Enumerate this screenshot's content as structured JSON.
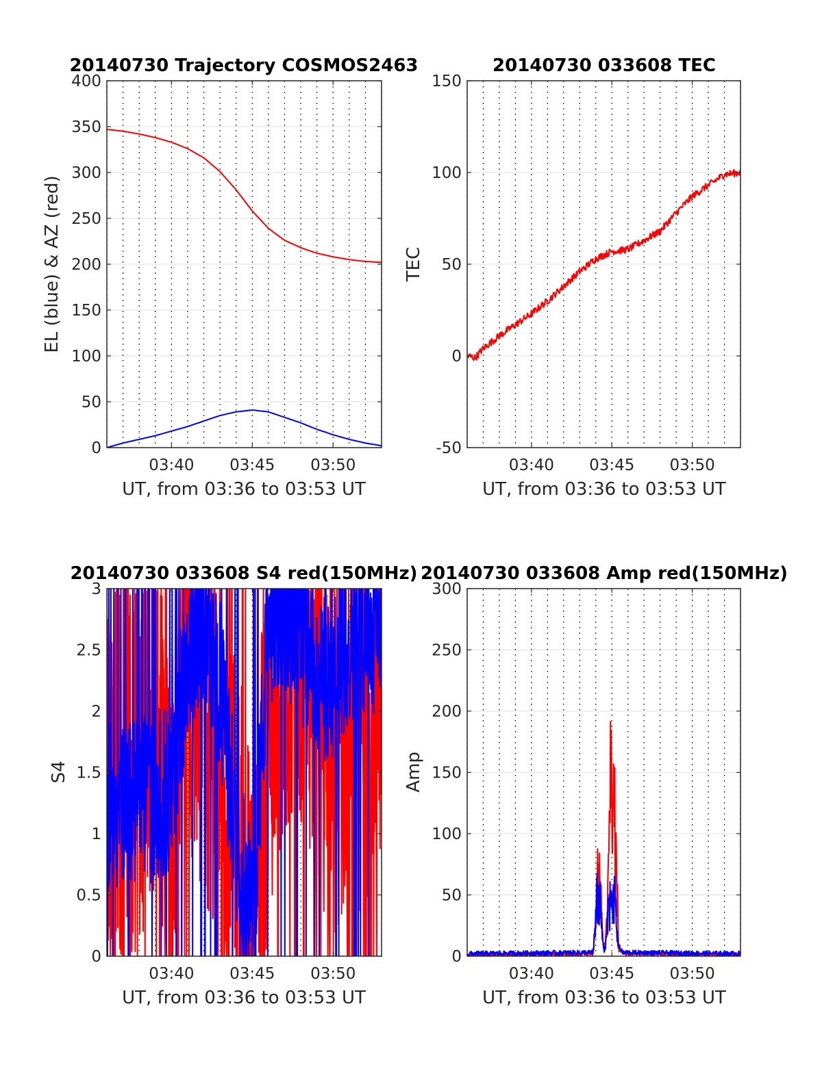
{
  "chart_data": [
    {
      "type": "line",
      "title": "20140730 Trajectory COSMOS2463",
      "xlabel": "UT, from 03:36 to 03:53 UT",
      "ylabel": "EL (blue) & AZ (red)",
      "xlim": [
        "03:36",
        "03:53"
      ],
      "ylim": [
        0,
        400
      ],
      "xticks": [
        "03:40",
        "03:45",
        "03:50"
      ],
      "yticks": [
        "0",
        "50",
        "100",
        "150",
        "200",
        "250",
        "300",
        "350",
        "400"
      ],
      "grid": true,
      "series": [
        {
          "color": "#ff0000",
          "x": [
            "03:36:00",
            "03:37:00",
            "03:38:00",
            "03:39:00",
            "03:40:00",
            "03:41:00",
            "03:42:00",
            "03:43:00",
            "03:44:00",
            "03:45:00",
            "03:46:00",
            "03:47:00",
            "03:48:00",
            "03:49:00",
            "03:50:00",
            "03:51:00",
            "03:52:00",
            "03:53:00"
          ],
          "values": [
            347,
            345,
            342,
            338,
            333,
            326,
            316,
            301,
            281,
            258,
            239,
            226,
            218,
            212,
            208,
            205,
            203,
            202
          ]
        },
        {
          "color": "#0000ff",
          "x": [
            "03:36:00",
            "03:37:00",
            "03:38:00",
            "03:39:00",
            "03:40:00",
            "03:41:00",
            "03:42:00",
            "03:43:00",
            "03:44:00",
            "03:45:00",
            "03:46:00",
            "03:47:00",
            "03:48:00",
            "03:49:00",
            "03:50:00",
            "03:51:00",
            "03:52:00",
            "03:53:00"
          ],
          "values": [
            0,
            5,
            9,
            13,
            18,
            23,
            29,
            35,
            39,
            41,
            39,
            33,
            27,
            20,
            14,
            9,
            5,
            2
          ]
        }
      ]
    },
    {
      "type": "line",
      "title": "20140730 033608 TEC",
      "xlabel": "UT, from 03:36 to 03:53 UT",
      "ylabel": "TEC",
      "xlim": [
        "03:36",
        "03:53"
      ],
      "ylim": [
        -50,
        150
      ],
      "xticks": [
        "03:40",
        "03:45",
        "03:50"
      ],
      "yticks": [
        "-50",
        "0",
        "50",
        "100",
        "150"
      ],
      "grid": true,
      "series": [
        {
          "color": "#ff0000",
          "x": [
            "03:36:00",
            "03:36:30",
            "03:37:00",
            "03:38:00",
            "03:39:00",
            "03:40:00",
            "03:41:00",
            "03:42:00",
            "03:43:00",
            "03:44:00",
            "03:45:00",
            "03:46:00",
            "03:47:00",
            "03:48:00",
            "03:49:00",
            "03:50:00",
            "03:51:00",
            "03:52:00",
            "03:53:00"
          ],
          "values": [
            0,
            -1,
            4,
            11,
            17,
            23,
            30,
            38,
            46,
            53,
            57,
            58,
            63,
            68,
            78,
            87,
            93,
            99,
            100
          ]
        }
      ]
    },
    {
      "type": "line",
      "title": "20140730 033608 S4 red(150MHz)",
      "xlabel": "UT, from 03:36 to 03:53 UT",
      "ylabel": "S4",
      "xlim": [
        "03:36",
        "03:53"
      ],
      "ylim": [
        0,
        3
      ],
      "xticks": [
        "03:40",
        "03:45",
        "03:50"
      ],
      "yticks": [
        "0",
        "0.5",
        "1",
        "1.5",
        "2",
        "2.5",
        "3"
      ],
      "grid": true,
      "series": [
        {
          "color": "#ff0000",
          "x": [
            "03:36",
            "03:37",
            "03:38",
            "03:39",
            "03:40",
            "03:41",
            "03:42",
            "03:43",
            "03:44",
            "03:45",
            "03:46",
            "03:47",
            "03:48",
            "03:49",
            "03:50",
            "03:51",
            "03:52",
            "03:53"
          ],
          "values": [
            1.3,
            1.5,
            1.6,
            2.2,
            1.2,
            2.6,
            1.8,
            1.4,
            0.8,
            0.4,
            1.8,
            2.6,
            2.4,
            2.1,
            1.6,
            1.9,
            2.0,
            2.5
          ]
        },
        {
          "color": "#0000ff",
          "x": [
            "03:36",
            "03:37",
            "03:38",
            "03:39",
            "03:40",
            "03:41",
            "03:42",
            "03:43",
            "03:44",
            "03:45",
            "03:46",
            "03:47",
            "03:48",
            "03:49",
            "03:50",
            "03:51",
            "03:52",
            "03:53"
          ],
          "values": [
            1.2,
            1.3,
            1.25,
            1.3,
            1.35,
            2.5,
            2.8,
            2.2,
            1.0,
            0.25,
            2.7,
            2.9,
            2.5,
            2.3,
            2.2,
            2.6,
            2.7,
            2.6
          ]
        }
      ]
    },
    {
      "type": "line",
      "title": "20140730 033608 Amp red(150MHz)",
      "xlabel": "UT, from 03:36 to 03:53 UT",
      "ylabel": "Amp",
      "xlim": [
        "03:36",
        "03:53"
      ],
      "ylim": [
        0,
        300
      ],
      "xticks": [
        "03:40",
        "03:45",
        "03:50"
      ],
      "yticks": [
        "0",
        "50",
        "100",
        "150",
        "200",
        "250",
        "300"
      ],
      "grid": true,
      "series": [
        {
          "color": "#ff0000",
          "x": [
            "03:36:00",
            "03:43:50",
            "03:44:05",
            "03:44:15",
            "03:44:25",
            "03:44:35",
            "03:44:45",
            "03:44:55",
            "03:45:05",
            "03:45:15",
            "03:45:25",
            "03:45:40",
            "03:53:00"
          ],
          "values": [
            1,
            2,
            75,
            90,
            20,
            5,
            60,
            206,
            180,
            120,
            10,
            2,
            1
          ]
        },
        {
          "color": "#0000ff",
          "x": [
            "03:36:00",
            "03:43:50",
            "03:44:05",
            "03:44:15",
            "03:44:25",
            "03:44:35",
            "03:44:45",
            "03:44:55",
            "03:45:05",
            "03:45:15",
            "03:45:25",
            "03:45:40",
            "03:53:00"
          ],
          "values": [
            2,
            3,
            60,
            65,
            15,
            5,
            40,
            70,
            75,
            50,
            8,
            3,
            2
          ]
        }
      ]
    }
  ]
}
